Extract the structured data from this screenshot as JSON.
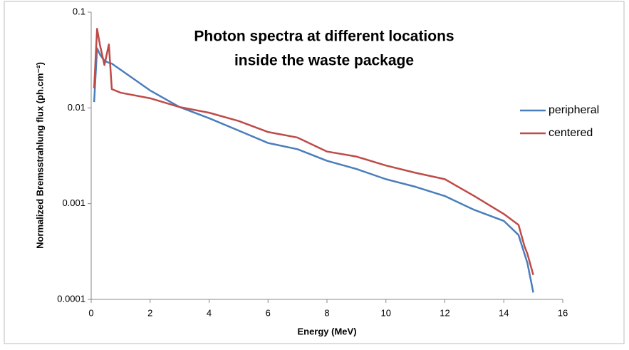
{
  "chart_data": {
    "type": "line",
    "title": [
      "Photon spectra at different locations",
      "inside the waste package"
    ],
    "x_label": "Energy (MeV)",
    "y_label": "Normalized Bremsstrahlung flux (ph.cm⁻²)",
    "log_y": true,
    "grid": false,
    "legend": "right",
    "x": [
      0.1,
      0.2,
      0.3,
      0.45,
      0.6,
      0.7,
      1,
      2,
      3,
      4,
      5,
      6,
      7,
      8,
      9,
      10,
      11,
      12,
      13,
      14,
      14.5,
      14.7,
      14.8,
      15
    ],
    "series": [
      {
        "name": "peripheral",
        "color": "#4a7ebb",
        "values": [
          0.0115,
          0.042,
          0.036,
          0.031,
          0.0296,
          0.029,
          0.025,
          0.0152,
          0.0102,
          0.0078,
          0.0058,
          0.0043,
          0.0037,
          0.0028,
          0.0023,
          0.0018,
          0.0015,
          0.0012,
          0.00086,
          0.00066,
          0.00047,
          0.0003,
          0.00024,
          0.000118
        ]
      },
      {
        "name": "centered",
        "color": "#be4b48",
        "values": [
          0.016,
          0.067,
          0.045,
          0.028,
          0.046,
          0.0157,
          0.0144,
          0.0126,
          0.0102,
          0.0089,
          0.0073,
          0.0056,
          0.0049,
          0.0035,
          0.0031,
          0.0025,
          0.0021,
          0.0018,
          0.0012,
          0.00078,
          0.0006,
          0.00036,
          0.0003,
          0.00018
        ]
      }
    ],
    "xlim": [
      0,
      16
    ],
    "xticks": [
      0,
      2,
      4,
      6,
      8,
      10,
      12,
      14,
      16
    ],
    "ylim": [
      0.0001,
      0.1
    ],
    "yticks": [
      0.0001,
      0.001,
      0.01,
      0.1
    ]
  }
}
